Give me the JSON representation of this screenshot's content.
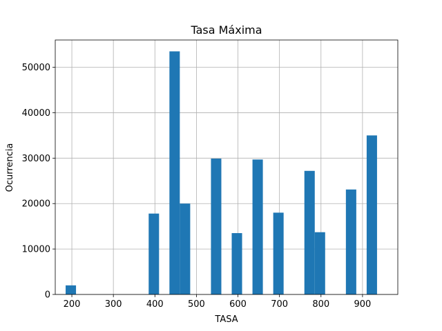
{
  "chart_data": {
    "type": "bar",
    "title": "Tasa Máxima",
    "xlabel": "TASA",
    "ylabel": "Ocurrencia",
    "xlim": [
      160,
      985
    ],
    "ylim": [
      0,
      56000
    ],
    "xticks": [
      200,
      300,
      400,
      500,
      600,
      700,
      800,
      900
    ],
    "yticks": [
      0,
      10000,
      20000,
      30000,
      40000,
      50000
    ],
    "grid": true,
    "bar_color": "#1f77b4",
    "bars": [
      {
        "x0": 185,
        "x1": 210,
        "value": 2000
      },
      {
        "x0": 385,
        "x1": 410,
        "value": 17800
      },
      {
        "x0": 435,
        "x1": 460,
        "value": 53500
      },
      {
        "x0": 460,
        "x1": 485,
        "value": 20000
      },
      {
        "x0": 535,
        "x1": 560,
        "value": 29900
      },
      {
        "x0": 585,
        "x1": 610,
        "value": 13500
      },
      {
        "x0": 635,
        "x1": 660,
        "value": 29700
      },
      {
        "x0": 685,
        "x1": 710,
        "value": 18000
      },
      {
        "x0": 760,
        "x1": 785,
        "value": 27200
      },
      {
        "x0": 785,
        "x1": 810,
        "value": 13700
      },
      {
        "x0": 860,
        "x1": 885,
        "value": 23100
      },
      {
        "x0": 910,
        "x1": 935,
        "value": 35000
      }
    ]
  }
}
